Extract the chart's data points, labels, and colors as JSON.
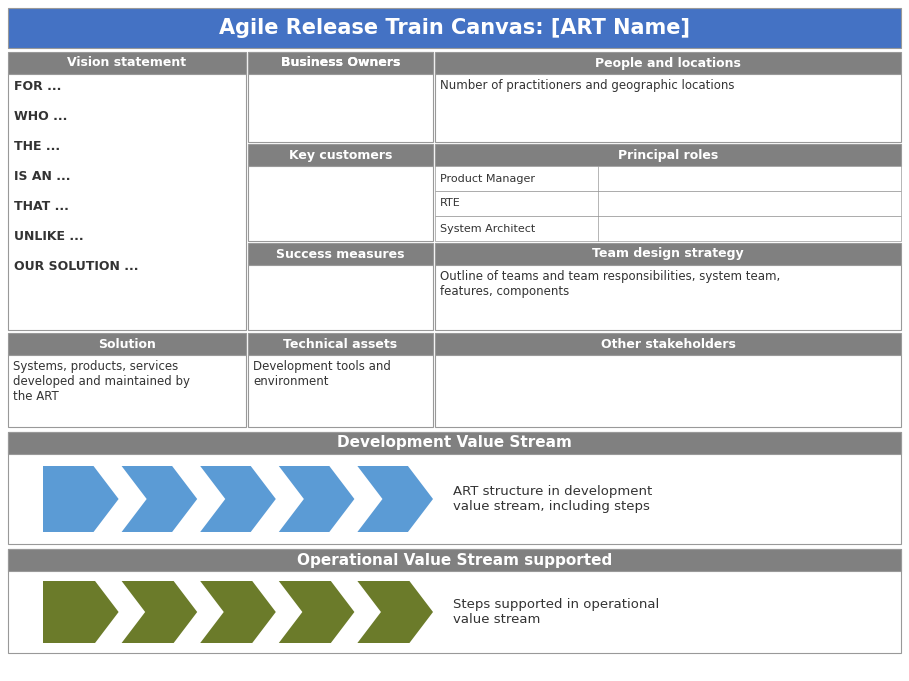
{
  "title": "Agile Release Train Canvas: [ART Name]",
  "title_bg": "#4472C4",
  "title_color": "#FFFFFF",
  "header_bg": "#808080",
  "header_color": "#FFFFFF",
  "body_bg": "#FFFFFF",
  "body_text_color": "#333333",
  "blue_arrow_color": "#5B9BD5",
  "green_arrow_color": "#6B7B2A",
  "vision_body": "FOR ...\n\nWHO ...\n\nTHE ...\n\nIS AN ...\n\nTHAT ...\n\nUNLIKE ...\n\nOUR SOLUTION ...",
  "people_body": "Number of practitioners and geographic locations",
  "principal_roles": [
    "Product Manager",
    "RTE",
    "System Architect"
  ],
  "team_design_body": "Outline of teams and team responsibilities, system team,\nfeatures, components",
  "solution_body": "Systems, products, services\ndeveloped and maintained by\nthe ART",
  "technical_body": "Development tools and\nenvironment",
  "dev_stream_body": "ART structure in development\nvalue stream, including steps",
  "ops_stream_body": "Steps supported in operational\nvalue stream"
}
